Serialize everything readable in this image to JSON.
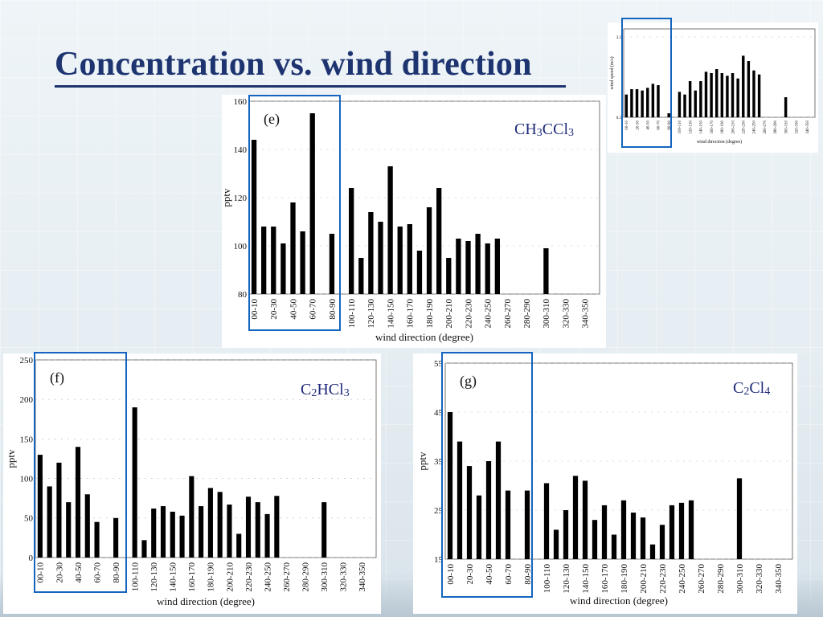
{
  "title": "Concentration vs. wind direction",
  "colors": {
    "title": "#1e3470",
    "box": "#1565c0",
    "bar": "#000000",
    "compound": "#1e2a7a"
  },
  "chart_data": [
    {
      "id": "wind",
      "type": "bar",
      "xlabel": "wind direction (degree)",
      "ylabel": "wind speed (m/s)",
      "ylim": [
        0.5,
        3.8
      ],
      "yticks": [
        "0.5",
        "3.5"
      ],
      "categories": [
        "00-10",
        "10-20",
        "20-30",
        "30-40",
        "40-50",
        "50-60",
        "60-70",
        "70-80",
        "80-90",
        "90-100",
        "100-110",
        "110-120",
        "120-130",
        "130-140",
        "140-150",
        "150-160",
        "160-170",
        "170-180",
        "180-190",
        "190-200",
        "200-210",
        "210-220",
        "220-230",
        "230-240",
        "240-250",
        "250-260",
        "260-270",
        "270-280",
        "280-290",
        "290-300",
        "300-310",
        "310-320",
        "320-330",
        "330-340",
        "340-350",
        "350-360"
      ],
      "xticks": [
        "00-10",
        "20-30",
        "40-50",
        "60-70",
        "80-90",
        "100-110",
        "120-130",
        "140-150",
        "160-170",
        "180-190",
        "200-210",
        "220-230",
        "240-250",
        "260-270",
        "280-290",
        "300-310",
        "320-330",
        "340-350"
      ],
      "values": [
        1.35,
        1.55,
        1.55,
        1.5,
        1.6,
        1.75,
        1.7,
        null,
        0.65,
        null,
        1.45,
        1.35,
        1.85,
        1.5,
        1.85,
        2.2,
        2.15,
        2.3,
        2.15,
        2.05,
        2.15,
        1.95,
        2.8,
        2.6,
        2.25,
        2.1,
        null,
        null,
        null,
        null,
        1.25,
        null,
        null,
        null,
        null,
        null
      ]
    },
    {
      "id": "e",
      "type": "bar",
      "panel_label": "(e)",
      "compound": [
        "CH",
        "3",
        "CCl",
        "3"
      ],
      "xlabel": "wind direction (degree)",
      "ylabel": "pptv",
      "ylim": [
        80,
        160
      ],
      "yticks": [
        "80",
        "100",
        "120",
        "140",
        "160"
      ],
      "categories": [
        "00-10",
        "10-20",
        "20-30",
        "30-40",
        "40-50",
        "50-60",
        "60-70",
        "70-80",
        "80-90",
        "90-100",
        "100-110",
        "110-120",
        "120-130",
        "130-140",
        "140-150",
        "150-160",
        "160-170",
        "170-180",
        "180-190",
        "190-200",
        "200-210",
        "210-220",
        "220-230",
        "230-240",
        "240-250",
        "250-260",
        "260-270",
        "270-280",
        "280-290",
        "290-300",
        "300-310",
        "310-320",
        "320-330",
        "330-340",
        "340-350",
        "350-360"
      ],
      "xticks": [
        "00-10",
        "20-30",
        "40-50",
        "60-70",
        "80-90",
        "100-110",
        "120-130",
        "140-150",
        "160-170",
        "180-190",
        "200-210",
        "220-230",
        "240-250",
        "260-270",
        "280-290",
        "300-310",
        "320-330",
        "340-350"
      ],
      "values": [
        144,
        108,
        108,
        101,
        118,
        106,
        155,
        null,
        105,
        null,
        124,
        95,
        114,
        110,
        133,
        108,
        109,
        98,
        116,
        124,
        95,
        103,
        102,
        105,
        101,
        103,
        null,
        null,
        null,
        null,
        99,
        null,
        null,
        null,
        null,
        null
      ]
    },
    {
      "id": "f",
      "type": "bar",
      "panel_label": "(f)",
      "compound": [
        "C",
        "2",
        "HCl",
        "3"
      ],
      "xlabel": "wind direction (degree)",
      "ylabel": "pptv",
      "ylim": [
        0,
        250
      ],
      "yticks": [
        "0",
        "50",
        "100",
        "150",
        "200",
        "250"
      ],
      "categories": [
        "00-10",
        "10-20",
        "20-30",
        "30-40",
        "40-50",
        "50-60",
        "60-70",
        "70-80",
        "80-90",
        "90-100",
        "100-110",
        "110-120",
        "120-130",
        "130-140",
        "140-150",
        "150-160",
        "160-170",
        "170-180",
        "180-190",
        "190-200",
        "200-210",
        "210-220",
        "220-230",
        "230-240",
        "240-250",
        "250-260",
        "260-270",
        "270-280",
        "280-290",
        "290-300",
        "300-310",
        "310-320",
        "320-330",
        "330-340",
        "340-350",
        "350-360"
      ],
      "xticks": [
        "00-10",
        "20-30",
        "40-50",
        "60-70",
        "80-90",
        "100-110",
        "120-130",
        "140-150",
        "160-170",
        "180-190",
        "200-210",
        "220-230",
        "240-250",
        "260-270",
        "280-290",
        "300-310",
        "320-330",
        "340-350"
      ],
      "values": [
        130,
        90,
        120,
        70,
        140,
        80,
        45,
        null,
        50,
        null,
        190,
        22,
        62,
        65,
        58,
        53,
        103,
        65,
        88,
        83,
        67,
        30,
        77,
        70,
        55,
        78,
        null,
        null,
        null,
        null,
        70,
        null,
        null,
        null,
        null,
        null
      ]
    },
    {
      "id": "g",
      "type": "bar",
      "panel_label": "(g)",
      "compound": [
        "C",
        "2",
        "Cl",
        "4"
      ],
      "xlabel": "wind direction (degree)",
      "ylabel": "pptv",
      "ylim": [
        15,
        55
      ],
      "yticks": [
        "15",
        "25",
        "35",
        "45",
        "55"
      ],
      "categories": [
        "00-10",
        "10-20",
        "20-30",
        "30-40",
        "40-50",
        "50-60",
        "60-70",
        "70-80",
        "80-90",
        "90-100",
        "100-110",
        "110-120",
        "120-130",
        "130-140",
        "140-150",
        "150-160",
        "160-170",
        "170-180",
        "180-190",
        "190-200",
        "200-210",
        "210-220",
        "220-230",
        "230-240",
        "240-250",
        "250-260",
        "260-270",
        "270-280",
        "280-290",
        "290-300",
        "300-310",
        "310-320",
        "320-330",
        "330-340",
        "340-350",
        "350-360"
      ],
      "xticks": [
        "00-10",
        "20-30",
        "40-50",
        "60-70",
        "80-90",
        "100-110",
        "120-130",
        "140-150",
        "160-170",
        "180-190",
        "200-210",
        "220-230",
        "240-250",
        "260-270",
        "280-290",
        "300-310",
        "320-330",
        "340-350"
      ],
      "values": [
        45,
        39,
        34,
        28,
        35,
        39,
        29,
        null,
        29,
        null,
        30.5,
        21,
        25,
        32,
        31,
        23,
        26,
        20,
        27,
        24.5,
        23.5,
        18,
        22,
        26,
        26.5,
        27,
        null,
        null,
        null,
        null,
        31.5,
        null,
        null,
        null,
        null,
        null
      ]
    }
  ]
}
